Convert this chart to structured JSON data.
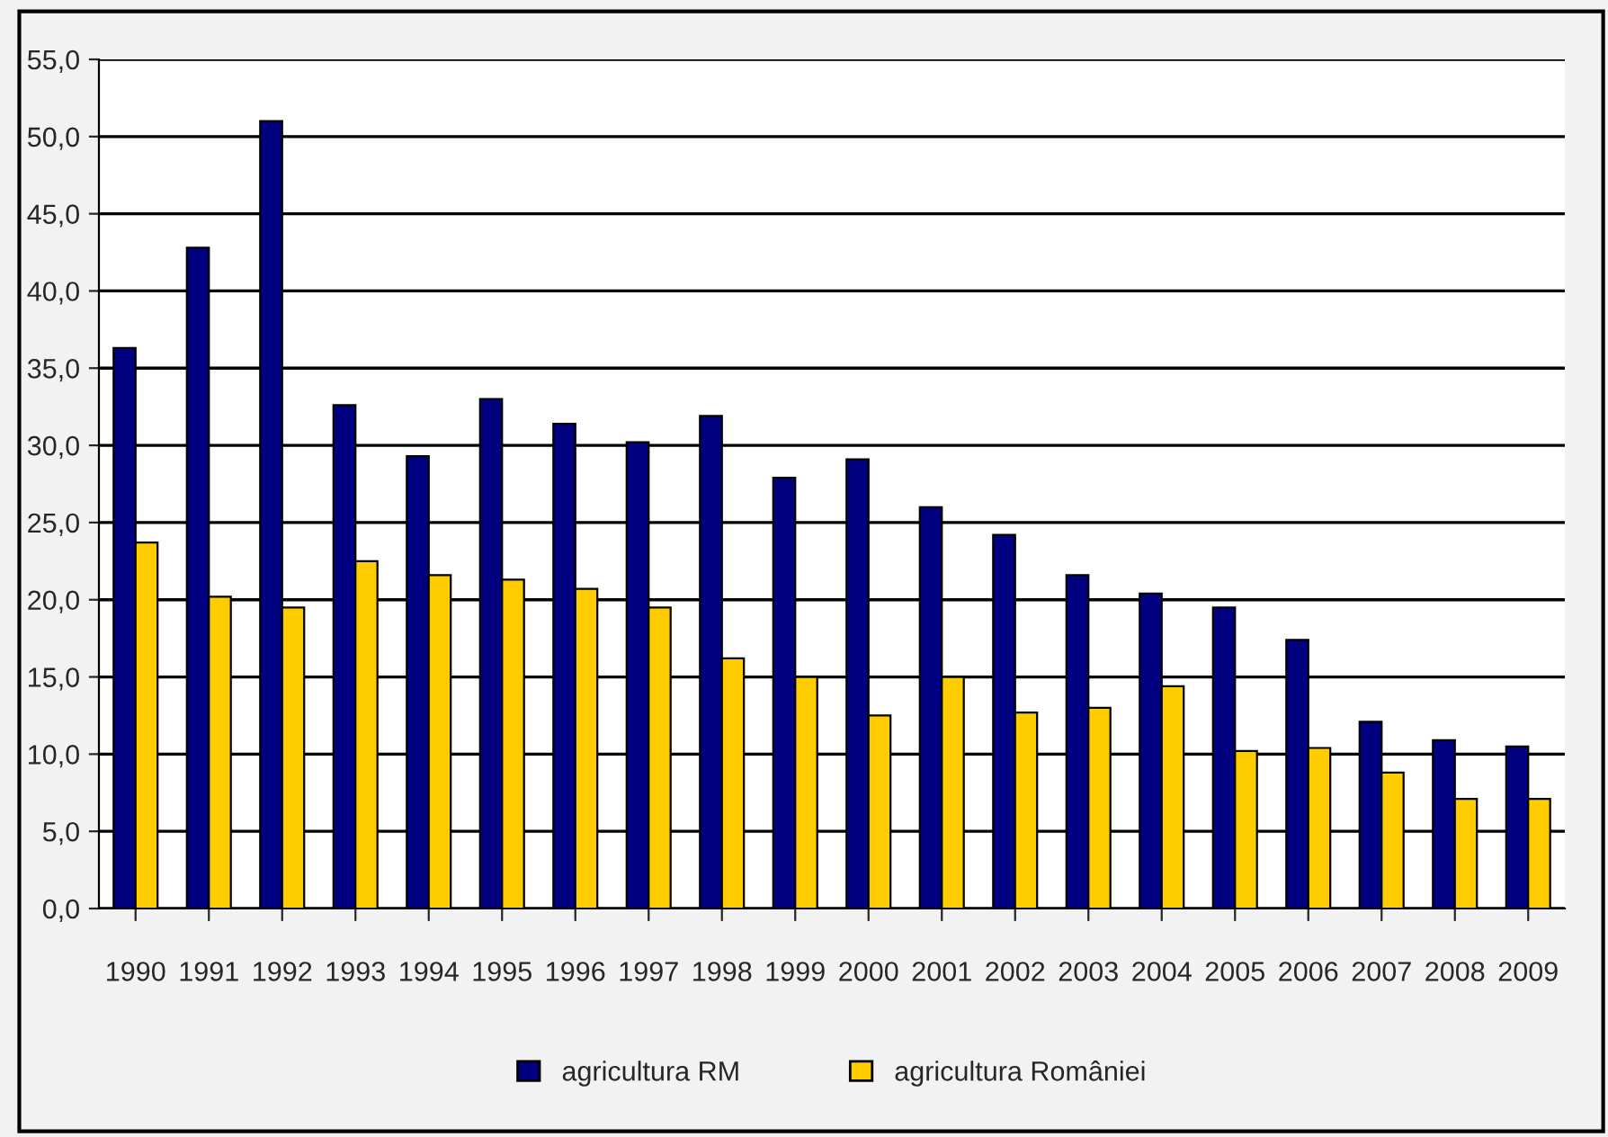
{
  "chart_data": {
    "type": "bar",
    "categories": [
      "1990",
      "1991",
      "1992",
      "1993",
      "1994",
      "1995",
      "1996",
      "1997",
      "1998",
      "1999",
      "2000",
      "2001",
      "2002",
      "2003",
      "2004",
      "2005",
      "2006",
      "2007",
      "2008",
      "2009"
    ],
    "series": [
      {
        "name": "agricultura RM",
        "color": "#000080",
        "values": [
          36.3,
          42.8,
          51.0,
          32.6,
          29.3,
          33.0,
          31.4,
          30.2,
          31.9,
          27.9,
          29.1,
          26.0,
          24.2,
          21.6,
          20.4,
          19.5,
          17.4,
          12.1,
          10.9,
          10.5
        ]
      },
      {
        "name": "agricultura României",
        "color": "#ffcc00",
        "values": [
          23.7,
          20.2,
          19.5,
          22.5,
          21.6,
          21.3,
          20.7,
          19.5,
          16.2,
          15.0,
          12.5,
          15.0,
          12.7,
          13.0,
          14.4,
          10.2,
          10.4,
          8.8,
          7.1,
          7.1
        ]
      }
    ],
    "ylim": [
      0,
      55
    ],
    "yticks": [
      {
        "value": 0,
        "label": "0,0"
      },
      {
        "value": 5,
        "label": "5,0"
      },
      {
        "value": 10,
        "label": "10,0"
      },
      {
        "value": 15,
        "label": "15,0"
      },
      {
        "value": 20,
        "label": "20,0"
      },
      {
        "value": 25,
        "label": "25,0"
      },
      {
        "value": 30,
        "label": "30,0"
      },
      {
        "value": 35,
        "label": "35,0"
      },
      {
        "value": 40,
        "label": "40,0"
      },
      {
        "value": 45,
        "label": "45,0"
      },
      {
        "value": 50,
        "label": "50,0"
      },
      {
        "value": 55,
        "label": "55,0"
      }
    ],
    "grid": "y",
    "legend": "bottom"
  }
}
